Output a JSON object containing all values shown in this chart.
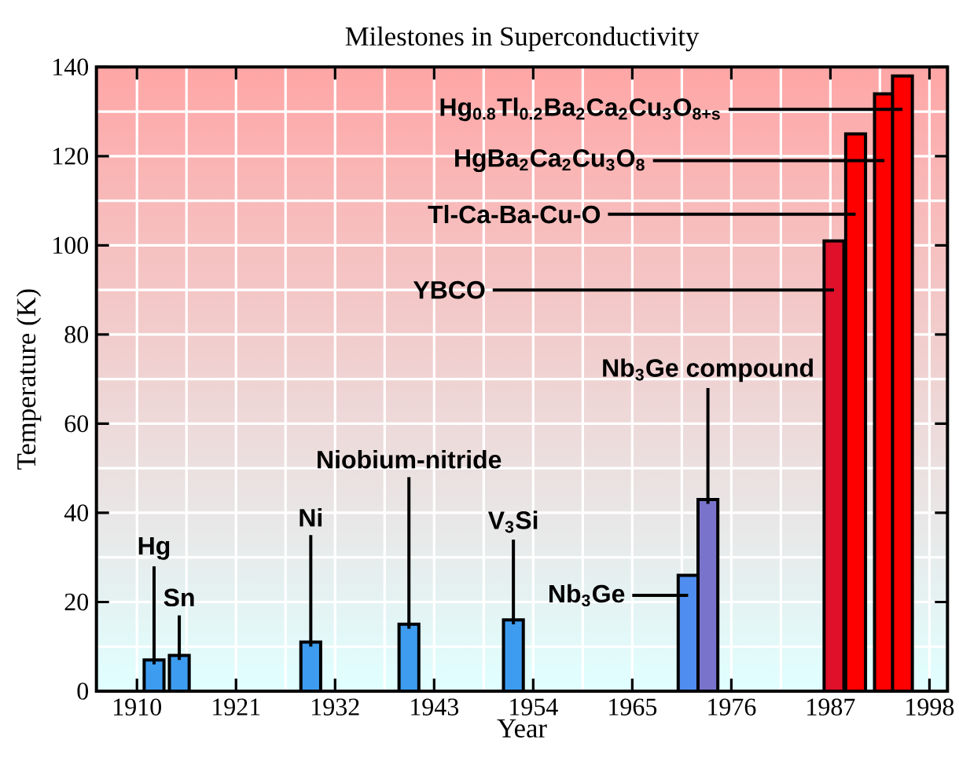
{
  "chart_data": {
    "type": "bar",
    "title": "Milestones in Superconductivity",
    "xlabel": "Year",
    "ylabel": "Temperature (K)",
    "x": [
      1911.9,
      1914.7,
      1929.3,
      1940.2,
      1951.8,
      1971.2,
      1973.4,
      1987.4,
      1989.8,
      1993,
      1995
    ],
    "values": [
      7,
      8,
      11,
      15,
      16,
      26,
      43,
      101,
      125,
      134,
      138
    ],
    "colors": [
      "#3d9cf0",
      "#3d9cf0",
      "#3d9cf0",
      "#3d9cf0",
      "#3d9cf0",
      "#4f8ef0",
      "#7a73cc",
      "#e0102a",
      "#ff0000",
      "#ff0000",
      "#ff0000"
    ],
    "xlim": [
      1905.5,
      2000
    ],
    "xticks": [
      1910,
      1921,
      1932,
      1943,
      1954,
      1965,
      1976,
      1987,
      1998
    ],
    "ylim": [
      0,
      140
    ],
    "yticks": [
      0,
      20,
      40,
      60,
      80,
      100,
      120,
      140
    ],
    "grid": true,
    "annotations": [
      {
        "text": "Hg",
        "x": 1911.9,
        "y": 7
      },
      {
        "text": "Sn",
        "x": 1914.7,
        "y": 8
      },
      {
        "text": "Ni",
        "x": 1929.3,
        "y": 11
      },
      {
        "text": "Niobium-nitride",
        "x": 1940.2,
        "y": 15
      },
      {
        "text": "V$_{3}$Si",
        "x": 1951.8,
        "y": 16
      },
      "Nb$_{3}$Ge",
      {
        "text": "Nb$_{3}$Ge compound",
        "x": 1973.4,
        "y": 43
      },
      "YBCO",
      "Tl-Ca-Ba-Cu-O",
      "HgBa$_{2}$Ca$_{2}$Cu$_{3}$O$_{8}$",
      "Hg$_{0.8}$Tl$_{0.2}$Ba$_{2}$Ca$_{2}$Cu$_{3}$O$_{8+s}$"
    ]
  }
}
